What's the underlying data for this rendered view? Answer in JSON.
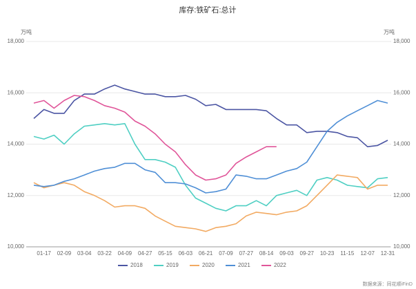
{
  "chart_data": {
    "type": "line",
    "title": "库存:铁矿石:总计",
    "y_unit": "万吨",
    "y2_unit": "万吨",
    "source": "数据来源：同花顺iFinD",
    "categories": [
      null,
      "01-17",
      null,
      "02-09",
      null,
      "03-04",
      null,
      "03-22",
      null,
      "04-09",
      null,
      "04-27",
      null,
      "05-15",
      null,
      "06-03",
      null,
      "06-21",
      null,
      "07-09",
      null,
      "07-27",
      null,
      "08-14",
      null,
      "09-03",
      null,
      "09-27",
      null,
      "10-23",
      null,
      "11-15",
      null,
      "12-07",
      null,
      "12-31"
    ],
    "series": [
      {
        "name": "2018",
        "color": "#4b55a3",
        "values": [
          15000,
          15350,
          15200,
          15200,
          15700,
          15950,
          15950,
          16150,
          16300,
          16150,
          16050,
          15950,
          15950,
          15850,
          15850,
          15900,
          15750,
          15500,
          15550,
          15350,
          15350,
          15350,
          15350,
          15300,
          15000,
          14750,
          14750,
          14450,
          14500,
          14500,
          14450,
          14300,
          14250,
          13900,
          13950,
          14150
        ]
      },
      {
        "name": "2019",
        "color": "#4fcfc3",
        "values": [
          14300,
          14200,
          14350,
          14000,
          14400,
          14700,
          14750,
          14800,
          14750,
          14800,
          14000,
          13400,
          13400,
          13300,
          13100,
          12400,
          11900,
          11700,
          11500,
          11400,
          11600,
          11600,
          11800,
          11600,
          12000,
          12100,
          12200,
          12000,
          12600,
          12700,
          12600,
          12400,
          12350,
          12300,
          12650,
          12700
        ]
      },
      {
        "name": "2020",
        "color": "#f2aa62",
        "values": [
          12500,
          12300,
          12400,
          12500,
          12400,
          12150,
          12000,
          11800,
          11550,
          11600,
          11600,
          11500,
          11200,
          11000,
          10800,
          10750,
          10700,
          10600,
          10750,
          10800,
          10900,
          11200,
          11350,
          11300,
          11250,
          11350,
          11400,
          11600,
          12000,
          12400,
          12800,
          12750,
          12700,
          12250,
          12400,
          12400
        ]
      },
      {
        "name": "2021",
        "color": "#4f8fd6",
        "values": [
          12400,
          12350,
          12400,
          12550,
          12650,
          12800,
          12950,
          13050,
          13100,
          13250,
          13250,
          13000,
          12900,
          12500,
          12500,
          12450,
          12300,
          12100,
          12150,
          12250,
          12800,
          12750,
          12650,
          12650,
          12800,
          12950,
          13050,
          13300,
          13900,
          14500,
          14850,
          15100,
          15300,
          15500,
          15700,
          15600
        ]
      },
      {
        "name": "2022",
        "color": "#e05599",
        "values": [
          15600,
          15700,
          15400,
          15700,
          15900,
          15850,
          15700,
          15500,
          15400,
          15250,
          14900,
          14700,
          14400,
          14000,
          13700,
          13200,
          12800,
          12600,
          12650,
          12800,
          13250,
          13500,
          13700,
          13900,
          13900,
          null,
          null,
          null,
          null,
          null,
          null,
          null,
          null,
          null,
          null,
          null
        ]
      }
    ],
    "ylim": [
      10000,
      18000
    ],
    "yticks": [
      {
        "value": 10000,
        "label": "10,000"
      },
      {
        "value": 12000,
        "label": "12,000"
      },
      {
        "value": 14000,
        "label": "14,000"
      },
      {
        "value": 16000,
        "label": "16,000"
      },
      {
        "value": 18000,
        "label": "18,000"
      }
    ],
    "y2lim": [
      10000,
      18000
    ],
    "y2ticks": [
      {
        "value": 10000,
        "label": "10,000"
      },
      {
        "value": 12000,
        "label": "12,000"
      },
      {
        "value": 14000,
        "label": "14,000"
      },
      {
        "value": 16000,
        "label": "16,000"
      },
      {
        "value": 18000,
        "label": "18,000"
      }
    ],
    "grid": true,
    "legend": "bottom"
  }
}
